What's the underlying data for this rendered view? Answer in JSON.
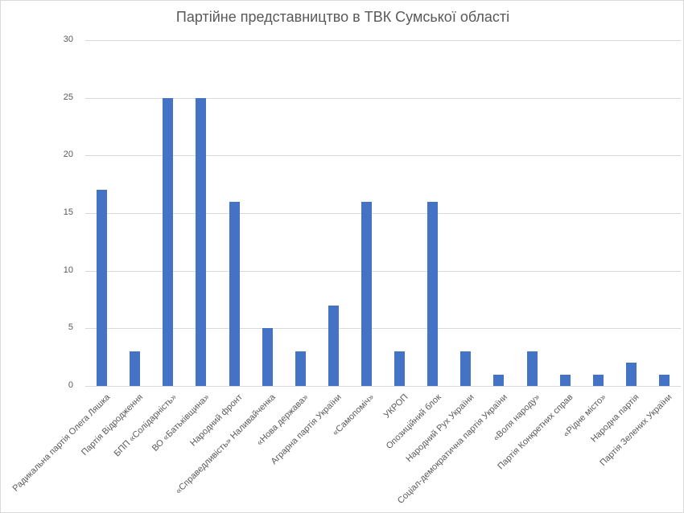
{
  "chart_data": {
    "type": "bar",
    "title": "Партійне представництво в ТВК Сумської області",
    "xlabel": "",
    "ylabel": "",
    "ylim": [
      0,
      30
    ],
    "yticks": [
      0,
      5,
      10,
      15,
      20,
      25,
      30
    ],
    "grid": true,
    "legend": null,
    "bar_color": "#4472c4",
    "categories": [
      "Радикальна партія Олега Ляшка",
      "Партія Відродження",
      "БПП «Солідарність»",
      "ВО «Батьківщина»",
      "Народний фронт",
      "«Справедливість» Наливайченка",
      "«Нова держава»",
      "Аграрна партія України",
      "«Самопоміч»",
      "УКРОП",
      "Опозиційний блок",
      "Народний Рух України",
      "Соціал-демократична партія України",
      "«Воля народу»",
      "Партія Конкретних справ",
      "«Рідне місто»",
      "Народна партія",
      "Партія Зелених України"
    ],
    "values": [
      17,
      3,
      25,
      25,
      16,
      5,
      3,
      7,
      16,
      3,
      16,
      3,
      1,
      3,
      1,
      1,
      2,
      1
    ]
  }
}
